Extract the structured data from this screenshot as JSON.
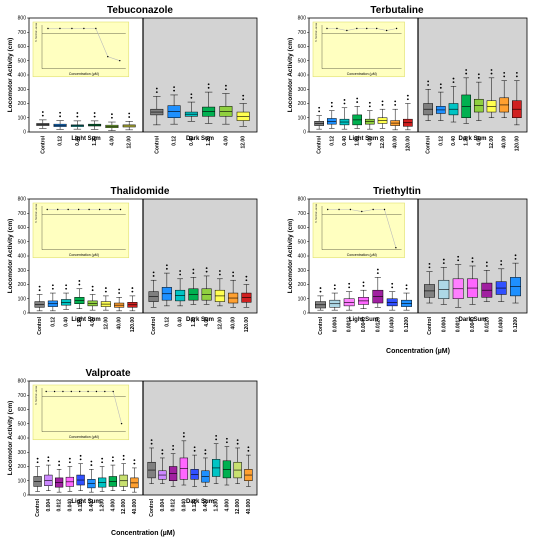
{
  "colors": {
    "dark_bg": "#d3d3d3",
    "inset_bg": "#ffffc0",
    "inset_border": "#e0e070",
    "inset_line": "#bbbbbb"
  },
  "chart_data": [
    {
      "type": "box",
      "title": "Tebuconazole",
      "ylabel": "Locomotor Activity (cm)",
      "xlabel": "",
      "ylim": [
        0,
        800
      ],
      "yticks": [
        0,
        100,
        200,
        300,
        400,
        500,
        600,
        700,
        800
      ],
      "categories": [
        "Control",
        "0.12",
        "0.40",
        "1.20",
        "4.00",
        "12.00"
      ],
      "light_label": "Light Sum",
      "dark_label": "Dark Sum",
      "colors": [
        "#808080",
        "#1e90ff",
        "#00c4c4",
        "#00b050",
        "#90d040",
        "#ffff50"
      ],
      "light": [
        [
          25,
          45,
          60,
          85
        ],
        [
          18,
          38,
          55,
          80
        ],
        [
          20,
          38,
          50,
          78
        ],
        [
          18,
          42,
          55,
          78
        ],
        [
          10,
          30,
          48,
          70
        ],
        [
          15,
          35,
          50,
          75
        ]
      ],
      "dark": [
        [
          50,
          120,
          160,
          250
        ],
        [
          55,
          100,
          185,
          260
        ],
        [
          75,
          110,
          140,
          210
        ],
        [
          60,
          110,
          175,
          280
        ],
        [
          55,
          110,
          180,
          270
        ],
        [
          40,
          80,
          140,
          200
        ]
      ],
      "inset": {
        "xlabel": "Concentration (µM)",
        "ylabel": "% Normal Larvae",
        "values": [
          100,
          100,
          100,
          100,
          100,
          30,
          20
        ]
      }
    },
    {
      "type": "box",
      "title": "Terbutaline",
      "ylabel": "Locomotor Activity (cm)",
      "xlabel": "",
      "ylim": [
        0,
        800
      ],
      "yticks": [
        0,
        100,
        200,
        300,
        400,
        500,
        600,
        700,
        800
      ],
      "categories": [
        "Control",
        "0.12",
        "0.40",
        "1.20",
        "4.00",
        "12.00",
        "40.00",
        "120.00"
      ],
      "light_label": "Light Sum",
      "dark_label": "Dark Sum",
      "colors": [
        "#808080",
        "#1e90ff",
        "#00c4c4",
        "#00b050",
        "#90d040",
        "#ffff50",
        "#ffa030",
        "#d02020"
      ],
      "light": [
        [
          20,
          45,
          75,
          115
        ],
        [
          25,
          55,
          95,
          150
        ],
        [
          20,
          50,
          90,
          170
        ],
        [
          25,
          50,
          120,
          180
        ],
        [
          20,
          55,
          90,
          150
        ],
        [
          25,
          60,
          100,
          160
        ],
        [
          15,
          45,
          80,
          160
        ],
        [
          15,
          40,
          90,
          200
        ]
      ],
      "dark": [
        [
          80,
          120,
          200,
          300
        ],
        [
          80,
          130,
          180,
          280
        ],
        [
          70,
          120,
          200,
          320
        ],
        [
          60,
          100,
          260,
          380
        ],
        [
          80,
          140,
          230,
          350
        ],
        [
          100,
          140,
          220,
          380
        ],
        [
          100,
          140,
          240,
          360
        ],
        [
          50,
          100,
          220,
          360
        ]
      ],
      "inset": {
        "xlabel": "Concentration (µM)",
        "ylabel": "% Normal Larvae",
        "values": [
          100,
          100,
          95,
          100,
          100,
          100,
          95,
          100
        ]
      }
    },
    {
      "type": "box",
      "title": "Thalidomide",
      "ylabel": "Locomotor Activity (cm)",
      "xlabel": "",
      "ylim": [
        0,
        800
      ],
      "yticks": [
        0,
        100,
        200,
        300,
        400,
        500,
        600,
        700,
        800
      ],
      "categories": [
        "Control",
        "0.12",
        "0.40",
        "1.20",
        "4.00",
        "12.00",
        "40.00",
        "120.00"
      ],
      "light_label": "Light Sum",
      "dark_label": "Dark Sum",
      "colors": [
        "#808080",
        "#1e90ff",
        "#00c4c4",
        "#00b050",
        "#90d040",
        "#ffff50",
        "#ffa030",
        "#d02020"
      ],
      "light": [
        [
          15,
          40,
          80,
          130
        ],
        [
          15,
          45,
          85,
          140
        ],
        [
          25,
          55,
          95,
          140
        ],
        [
          30,
          65,
          110,
          170
        ],
        [
          20,
          50,
          85,
          130
        ],
        [
          20,
          45,
          80,
          120
        ],
        [
          15,
          40,
          70,
          110
        ],
        [
          15,
          40,
          75,
          120
        ]
      ],
      "dark": [
        [
          40,
          80,
          150,
          230
        ],
        [
          50,
          90,
          180,
          280
        ],
        [
          50,
          85,
          160,
          240
        ],
        [
          60,
          90,
          170,
          250
        ],
        [
          60,
          90,
          170,
          260
        ],
        [
          50,
          80,
          160,
          240
        ],
        [
          40,
          70,
          140,
          230
        ],
        [
          40,
          75,
          140,
          200
        ]
      ],
      "inset": {
        "xlabel": "Concentration (µM)",
        "ylabel": "% Normal Larvae",
        "values": [
          100,
          100,
          100,
          100,
          100,
          100,
          100,
          100
        ]
      }
    },
    {
      "type": "box",
      "title": "Triethyltin",
      "ylabel": "Locomotor Activity (cm)",
      "xlabel": "Concentration (µM)",
      "ylim": [
        0,
        800
      ],
      "yticks": [
        0,
        100,
        200,
        300,
        400,
        500,
        600,
        700,
        800
      ],
      "categories": [
        "Control",
        "0.0004",
        "0.0012",
        "0.0040",
        "0.0120",
        "0.0400",
        "0.1200"
      ],
      "light_label": "Light Sum",
      "dark_label": "Dark Sum",
      "colors": [
        "#808080",
        "#add8e6",
        "#ff80ff",
        "#ff66ff",
        "#a020a0",
        "#3050ff",
        "#1e90ff"
      ],
      "light": [
        [
          20,
          35,
          80,
          120
        ],
        [
          20,
          40,
          90,
          140
        ],
        [
          20,
          50,
          100,
          150
        ],
        [
          30,
          60,
          110,
          160
        ],
        [
          40,
          70,
          160,
          250
        ],
        [
          20,
          50,
          100,
          150
        ],
        [
          20,
          45,
          90,
          140
        ]
      ],
      "dark": [
        [
          70,
          110,
          200,
          290
        ],
        [
          60,
          100,
          230,
          320
        ],
        [
          40,
          100,
          240,
          340
        ],
        [
          60,
          110,
          240,
          330
        ],
        [
          80,
          110,
          210,
          300
        ],
        [
          80,
          130,
          220,
          310
        ],
        [
          70,
          120,
          250,
          350
        ]
      ],
      "inset": {
        "xlabel": "Concentration (µM)",
        "ylabel": "% Normal Larvae",
        "values": [
          100,
          100,
          100,
          95,
          100,
          100,
          5
        ]
      }
    },
    {
      "type": "box",
      "title": "Valproate",
      "ylabel": "Locomotor Activity (cm)",
      "xlabel": "Concentration (µM)",
      "ylim": [
        0,
        800
      ],
      "yticks": [
        0,
        100,
        200,
        300,
        400,
        500,
        600,
        700,
        800
      ],
      "categories": [
        "Control",
        "0.004",
        "0.012",
        "0.040",
        "0.120",
        "0.400",
        "1.200",
        "4.000",
        "12.000",
        "40.000"
      ],
      "light_label": "Light Sum",
      "dark_label": "Dark Sum",
      "colors": [
        "#808080",
        "#cc88ff",
        "#a020a0",
        "#ff66ff",
        "#3050ff",
        "#1e90ff",
        "#00c4c4",
        "#00b050",
        "#c8e070",
        "#ffa030"
      ],
      "light": [
        [
          25,
          60,
          130,
          200
        ],
        [
          30,
          65,
          140,
          210
        ],
        [
          20,
          55,
          120,
          180
        ],
        [
          25,
          60,
          125,
          200
        ],
        [
          30,
          70,
          140,
          220
        ],
        [
          20,
          50,
          110,
          180
        ],
        [
          25,
          55,
          120,
          200
        ],
        [
          30,
          60,
          130,
          210
        ],
        [
          30,
          60,
          140,
          220
        ],
        [
          20,
          50,
          120,
          190
        ]
      ],
      "dark": [
        [
          80,
          120,
          230,
          330
        ],
        [
          80,
          110,
          170,
          260
        ],
        [
          60,
          100,
          200,
          290
        ],
        [
          70,
          110,
          260,
          380
        ],
        [
          60,
          110,
          180,
          280
        ],
        [
          60,
          90,
          170,
          260
        ],
        [
          80,
          130,
          250,
          360
        ],
        [
          70,
          120,
          240,
          340
        ],
        [
          80,
          120,
          230,
          330
        ],
        [
          60,
          100,
          180,
          280
        ]
      ],
      "inset": {
        "xlabel": "Concentration (µM)",
        "ylabel": "% Normal Larvae",
        "values": [
          100,
          100,
          100,
          100,
          100,
          100,
          100,
          100,
          100,
          20
        ]
      }
    }
  ]
}
